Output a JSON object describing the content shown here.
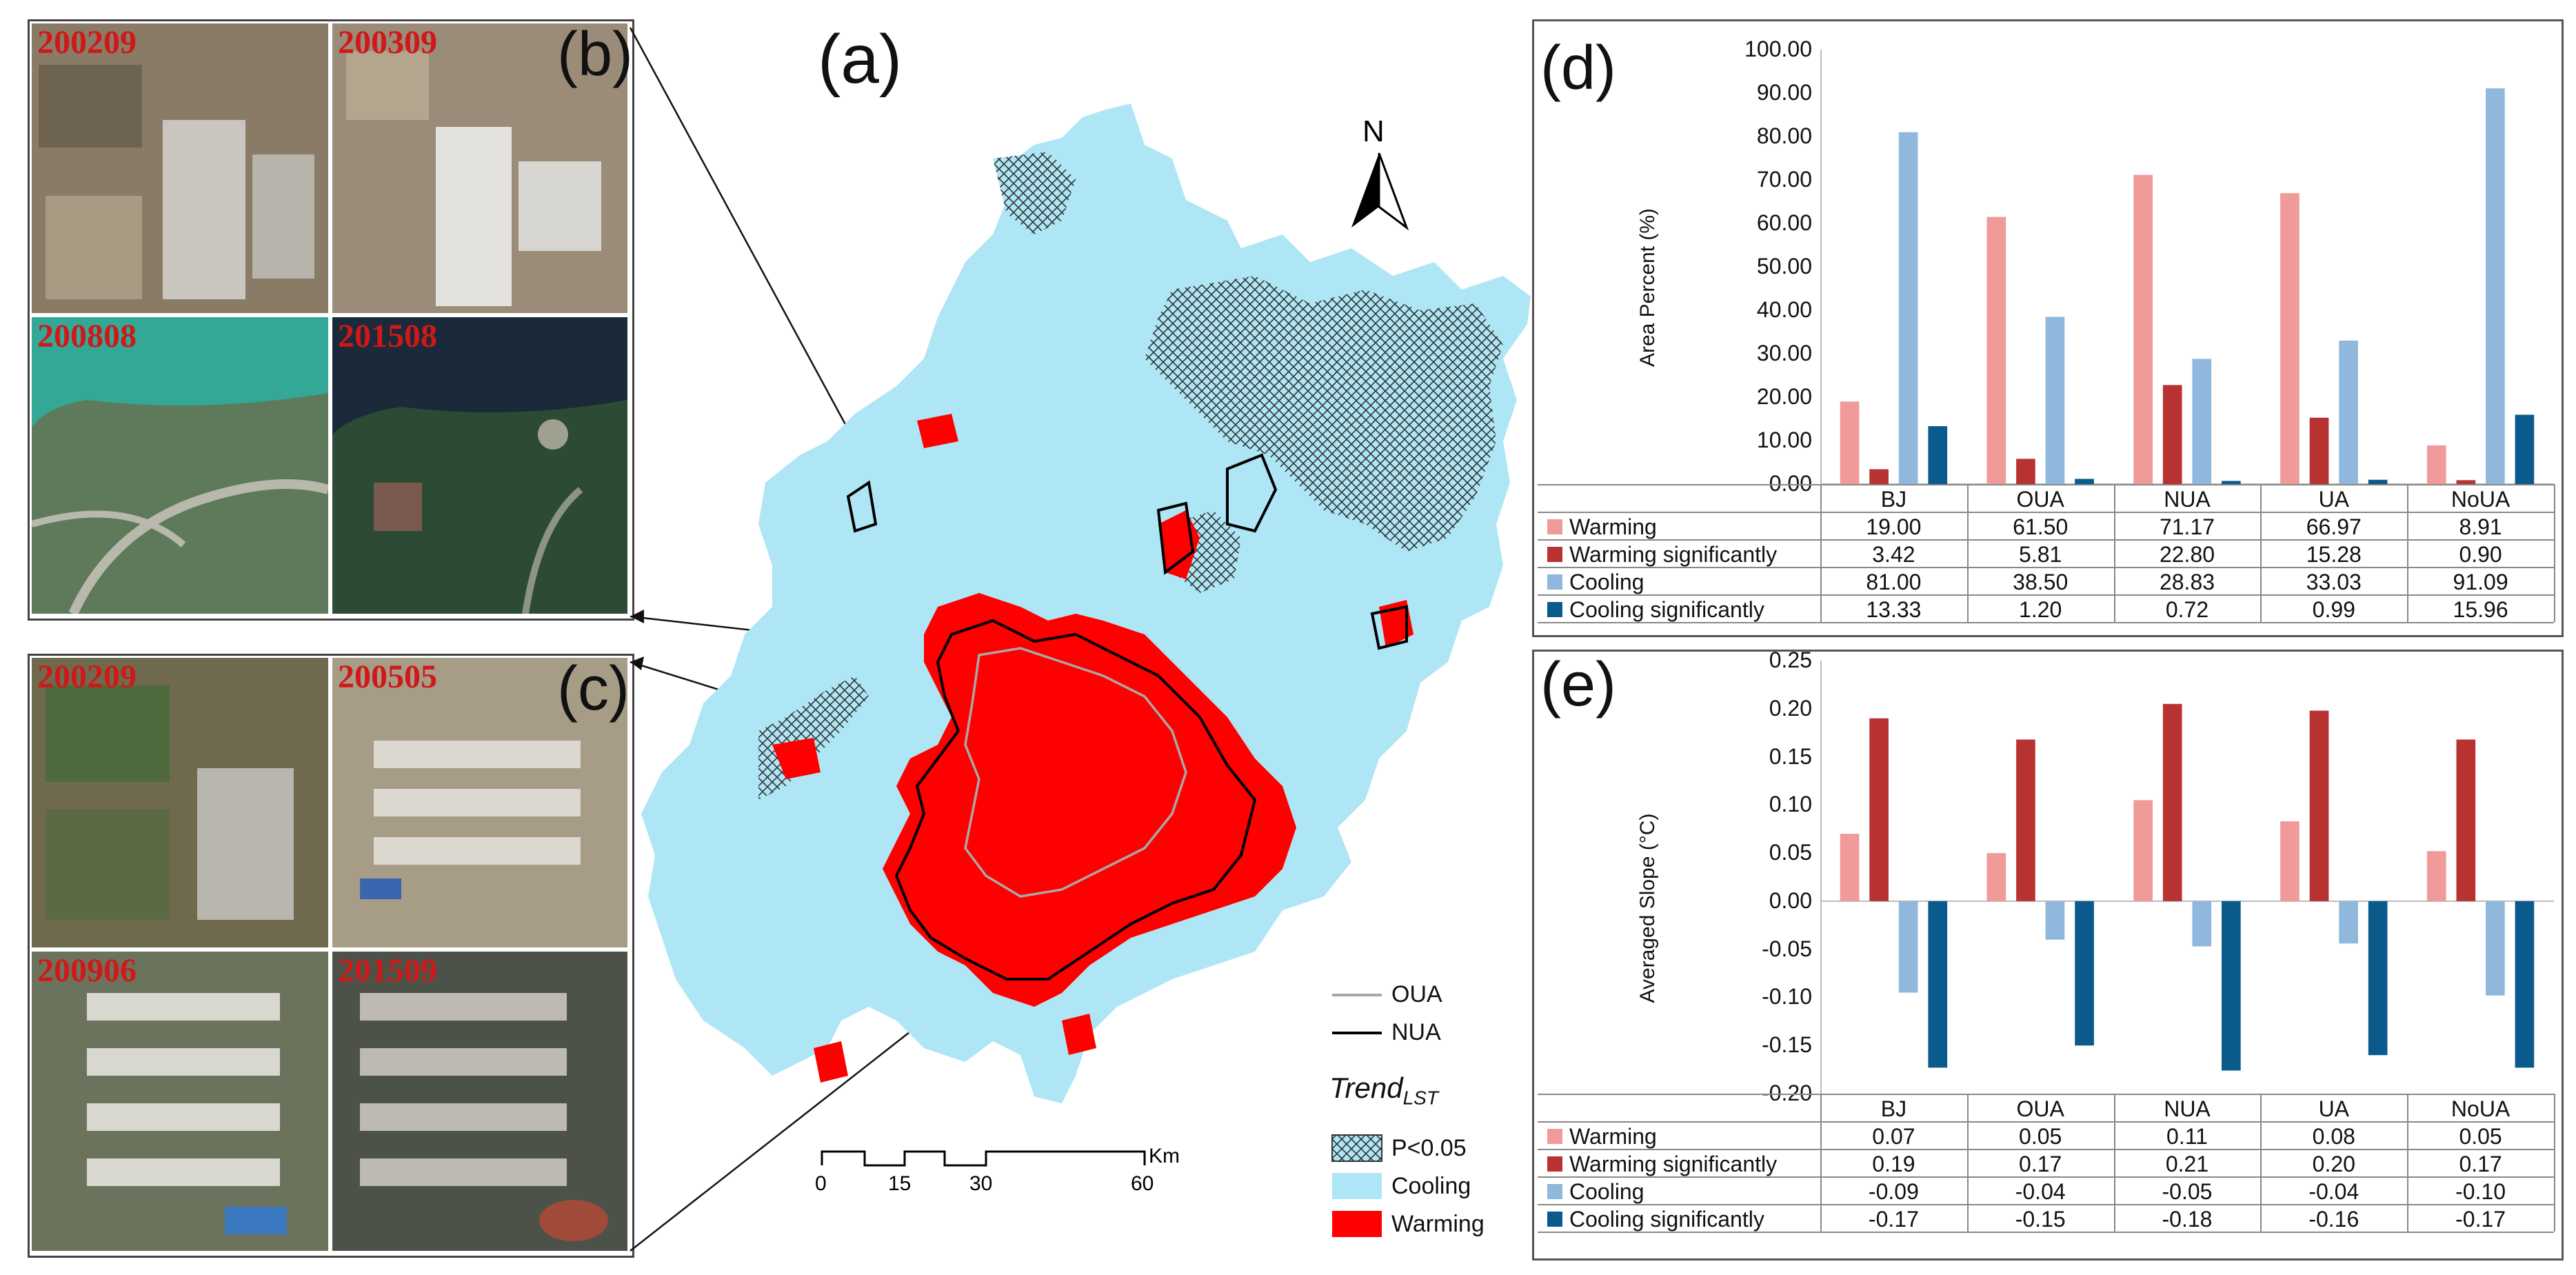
{
  "colors": {
    "warming": "#f09a9a",
    "warming_sig": "#b83232",
    "cooling": "#8fb8dc",
    "cooling_sig": "#0a5a8c",
    "map_cooling": "#aee6f5",
    "map_warming": "#ff0000",
    "photo_label": "#d01818"
  },
  "panel_b": {
    "letter": "(b)",
    "photos": [
      {
        "label": "200209",
        "tone": "#8a7b66"
      },
      {
        "label": "200309",
        "tone": "#9a8c78"
      },
      {
        "label": "200808",
        "tone": "#5e7a5a"
      },
      {
        "label": "201508",
        "tone": "#2c4a34"
      }
    ]
  },
  "panel_c": {
    "letter": "(c)",
    "photos": [
      {
        "label": "200209",
        "tone": "#6f6a4e"
      },
      {
        "label": "200505",
        "tone": "#a79c86"
      },
      {
        "label": "200906",
        "tone": "#6c735c"
      },
      {
        "label": "201509",
        "tone": "#4d5248"
      }
    ]
  },
  "panel_a": {
    "letter": "(a)",
    "north": "N",
    "legend": {
      "oua": "OUA",
      "nua": "NUA",
      "trend_title": "Trend",
      "trend_sub": "LST",
      "p_label": "P<0.05",
      "cooling": "Cooling",
      "warming": "Warming"
    },
    "scale": {
      "ticks": [
        "0",
        "15",
        "30",
        "60"
      ],
      "unit": "Km"
    }
  },
  "chart_data": [
    {
      "id": "d",
      "letter": "(d)",
      "type": "bar",
      "ylabel": "Area Percent (%)",
      "ylim": [
        0,
        100
      ],
      "yticks": [
        "100.00",
        "90.00",
        "80.00",
        "70.00",
        "60.00",
        "50.00",
        "40.00",
        "30.00",
        "20.00",
        "10.00",
        "0.00"
      ],
      "categories": [
        "BJ",
        "OUA",
        "NUA",
        "UA",
        "NoUA"
      ],
      "series": [
        {
          "name": "Warming",
          "color_key": "warming",
          "values": [
            19.0,
            61.5,
            71.17,
            66.97,
            8.91
          ],
          "labels": [
            "19.00",
            "61.50",
            "71.17",
            "66.97",
            "8.91"
          ]
        },
        {
          "name": "Warming significantly",
          "color_key": "warming_sig",
          "values": [
            3.42,
            5.81,
            22.8,
            15.28,
            0.9
          ],
          "labels": [
            "3.42",
            "5.81",
            "22.80",
            "15.28",
            "0.90"
          ]
        },
        {
          "name": "Cooling",
          "color_key": "cooling",
          "values": [
            81.0,
            38.5,
            28.83,
            33.03,
            91.09
          ],
          "labels": [
            "81.00",
            "38.50",
            "28.83",
            "33.03",
            "91.09"
          ]
        },
        {
          "name": "Cooling significantly",
          "color_key": "cooling_sig",
          "values": [
            13.33,
            1.2,
            0.72,
            0.99,
            15.96
          ],
          "labels": [
            "13.33",
            "1.20",
            "0.72",
            "0.99",
            "15.96"
          ]
        }
      ]
    },
    {
      "id": "e",
      "letter": "(e)",
      "type": "bar",
      "ylabel": "Averaged Slope (°C)",
      "ylim": [
        -0.2,
        0.25
      ],
      "yticks": [
        "0.25",
        "0.20",
        "0.15",
        "0.10",
        "0.05",
        "0.00",
        "-0.05",
        "-0.10",
        "-0.15",
        "-0.20"
      ],
      "categories": [
        "BJ",
        "OUA",
        "NUA",
        "UA",
        "NoUA"
      ],
      "series": [
        {
          "name": "Warming",
          "color_key": "warming",
          "values": [
            0.07,
            0.05,
            0.105,
            0.083,
            0.052
          ],
          "labels": [
            "0.07",
            "0.05",
            "0.11",
            "0.08",
            "0.05"
          ]
        },
        {
          "name": "Warming significantly",
          "color_key": "warming_sig",
          "values": [
            0.19,
            0.168,
            0.205,
            0.198,
            0.168
          ],
          "labels": [
            "0.19",
            "0.17",
            "0.21",
            "0.20",
            "0.17"
          ]
        },
        {
          "name": "Cooling",
          "color_key": "cooling",
          "values": [
            -0.095,
            -0.04,
            -0.047,
            -0.044,
            -0.098
          ],
          "labels": [
            "-0.09",
            "-0.04",
            "-0.05",
            "-0.04",
            "-0.10"
          ]
        },
        {
          "name": "Cooling significantly",
          "color_key": "cooling_sig",
          "values": [
            -0.173,
            -0.15,
            -0.176,
            -0.16,
            -0.173
          ],
          "labels": [
            "-0.17",
            "-0.15",
            "-0.18",
            "-0.16",
            "-0.17"
          ]
        }
      ]
    }
  ]
}
